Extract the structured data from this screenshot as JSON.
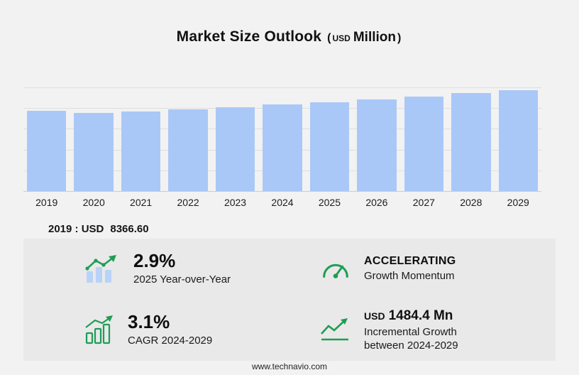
{
  "title": {
    "main": "Market Size Outlook",
    "paren_open": "(",
    "currency": "USD",
    "unit": "Million",
    "paren_close": ")"
  },
  "chart_data": {
    "type": "bar",
    "title": "Market Size Outlook (USD Million)",
    "categories": [
      "2019",
      "2020",
      "2021",
      "2022",
      "2023",
      "2024",
      "2025",
      "2026",
      "2027",
      "2028",
      "2029"
    ],
    "values": [
      8366.6,
      8150,
      8290,
      8500,
      8730,
      9000,
      9261,
      9540,
      9830,
      10150,
      10484.4
    ],
    "xlabel": "",
    "ylabel": "",
    "ylim": [
      0,
      10700
    ],
    "grid": true,
    "legend": false,
    "bar_color": "#a9c8f7"
  },
  "base_year": {
    "label": "2019 : USD",
    "value": "8366.60"
  },
  "stats": {
    "yoy": {
      "value": "2.9%",
      "label": "2025 Year-over-Year"
    },
    "momentum": {
      "value": "ACCELERATING",
      "label": "Growth Momentum"
    },
    "cagr": {
      "value": "3.1%",
      "label": "CAGR 2024-2029"
    },
    "incremental": {
      "currency": "USD",
      "value": "1484.4 Mn",
      "label_line1": "Incremental Growth",
      "label_line2": "between 2024-2029"
    }
  },
  "footer": {
    "url": "www.technavio.com"
  },
  "colors": {
    "bar": "#a9c8f7",
    "green": "#1f9d55",
    "panel": "#e9e9e9",
    "background": "#f2f2f2"
  }
}
